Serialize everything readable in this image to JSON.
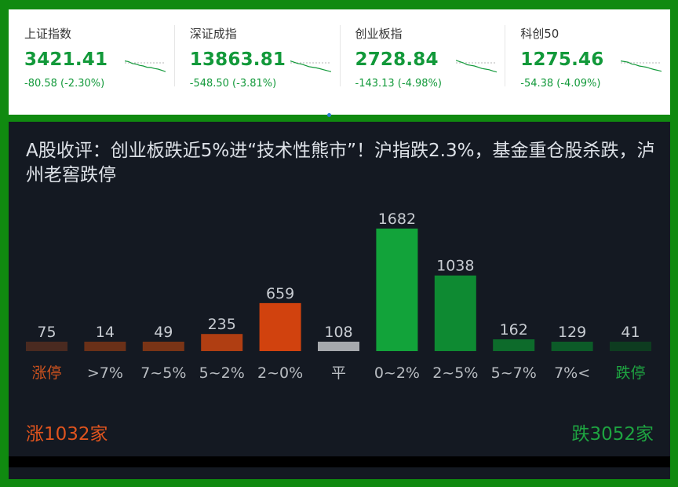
{
  "indices": [
    {
      "name": "上证指数",
      "value": "3421.41",
      "change": "-80.58 (-2.30%)",
      "sparkline": [
        0.1,
        0.15,
        0.3,
        0.35,
        0.45,
        0.5,
        0.6,
        0.62,
        0.7,
        0.75,
        0.85,
        0.95
      ]
    },
    {
      "name": "深证成指",
      "value": "13863.81",
      "change": "-548.50 (-3.81%)",
      "sparkline": [
        0.1,
        0.2,
        0.3,
        0.35,
        0.45,
        0.55,
        0.6,
        0.65,
        0.72,
        0.8,
        0.88,
        0.95
      ]
    },
    {
      "name": "创业板指",
      "value": "2728.84",
      "change": "-143.13 (-4.98%)",
      "sparkline": [
        0.05,
        0.15,
        0.25,
        0.4,
        0.45,
        0.5,
        0.6,
        0.7,
        0.75,
        0.8,
        0.9,
        0.98
      ]
    },
    {
      "name": "科创50",
      "value": "1275.46",
      "change": "-54.38 (-4.09%)",
      "sparkline": [
        0.1,
        0.15,
        0.2,
        0.35,
        0.4,
        0.5,
        0.55,
        0.6,
        0.7,
        0.78,
        0.85,
        0.92
      ]
    }
  ],
  "headline": "A股收评：创业板跌近5%进“技术性熊市”！沪指跌2.3%，基金重仓股杀跌，泸州老窖跌停",
  "colors": {
    "up": "#e0541e",
    "down": "#1ea441",
    "flat": "#a6a9ad",
    "index_green": "#12993a"
  },
  "chart_data": {
    "type": "bar",
    "categories": [
      "涨停",
      ">7%",
      "7~5%",
      "5~2%",
      "2~0%",
      "平",
      "0~2%",
      "2~5%",
      "5~7%",
      "7%<",
      "跌停"
    ],
    "values": [
      75,
      14,
      49,
      235,
      659,
      108,
      1682,
      1038,
      162,
      129,
      41
    ],
    "ylim": [
      0,
      1682
    ],
    "bar_colors": [
      "#4a2a20",
      "#6a3018",
      "#7a3416",
      "#b03e12",
      "#d1420e",
      "#a6a9ad",
      "#12a33a",
      "#0e8a32",
      "#0d6b2b",
      "#0c5b28",
      "#0e3c20"
    ],
    "label_colors": [
      "#d0531e",
      "#d0531e",
      "#d0531e",
      "#d0531e",
      "#d0531e",
      "#b9bdc2",
      "#1ea441",
      "#1ea441",
      "#1ea441",
      "#1ea441",
      "#1ea441"
    ],
    "cat_colors": [
      "#d0531e",
      "#b9bdc2",
      "#b9bdc2",
      "#b9bdc2",
      "#b9bdc2",
      "#b9bdc2",
      "#b9bdc2",
      "#b9bdc2",
      "#b9bdc2",
      "#b9bdc2",
      "#1ea441"
    ]
  },
  "totals": {
    "up_label": "涨1032家",
    "down_label": "跌3052家",
    "up": 1032,
    "down": 3052,
    "flat": 108
  }
}
